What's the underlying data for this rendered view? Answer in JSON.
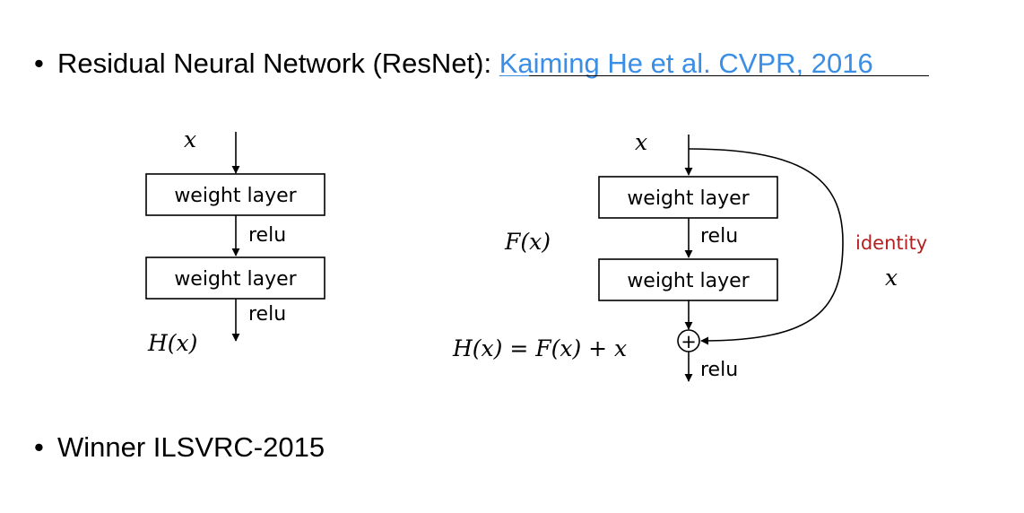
{
  "bullets": {
    "first_prefix": "Residual Neural Network (ResNet): ",
    "first_link": "Kaiming He et al. CVPR, 2016",
    "second": "Winner ILSVRC-2015",
    "marker": "•"
  },
  "plain_block": {
    "input_label": "x",
    "layer1_label": "weight layer",
    "relu1_label": "relu",
    "layer2_label": "weight layer",
    "relu2_label": "relu",
    "output_label": "H(x)"
  },
  "residual_block": {
    "input_label": "x",
    "fx_label": "F(x)",
    "layer1_label": "weight layer",
    "relu1_label": "relu",
    "layer2_label": "weight layer",
    "sum_symbol": "+",
    "equation_label": "H(x) = F(x) + x",
    "relu_out_label": "relu",
    "identity_label": "identity",
    "identity_var_label": "x"
  },
  "colors": {
    "link": "#3b8ee5",
    "identity": "#b22222",
    "stroke": "#000000"
  }
}
